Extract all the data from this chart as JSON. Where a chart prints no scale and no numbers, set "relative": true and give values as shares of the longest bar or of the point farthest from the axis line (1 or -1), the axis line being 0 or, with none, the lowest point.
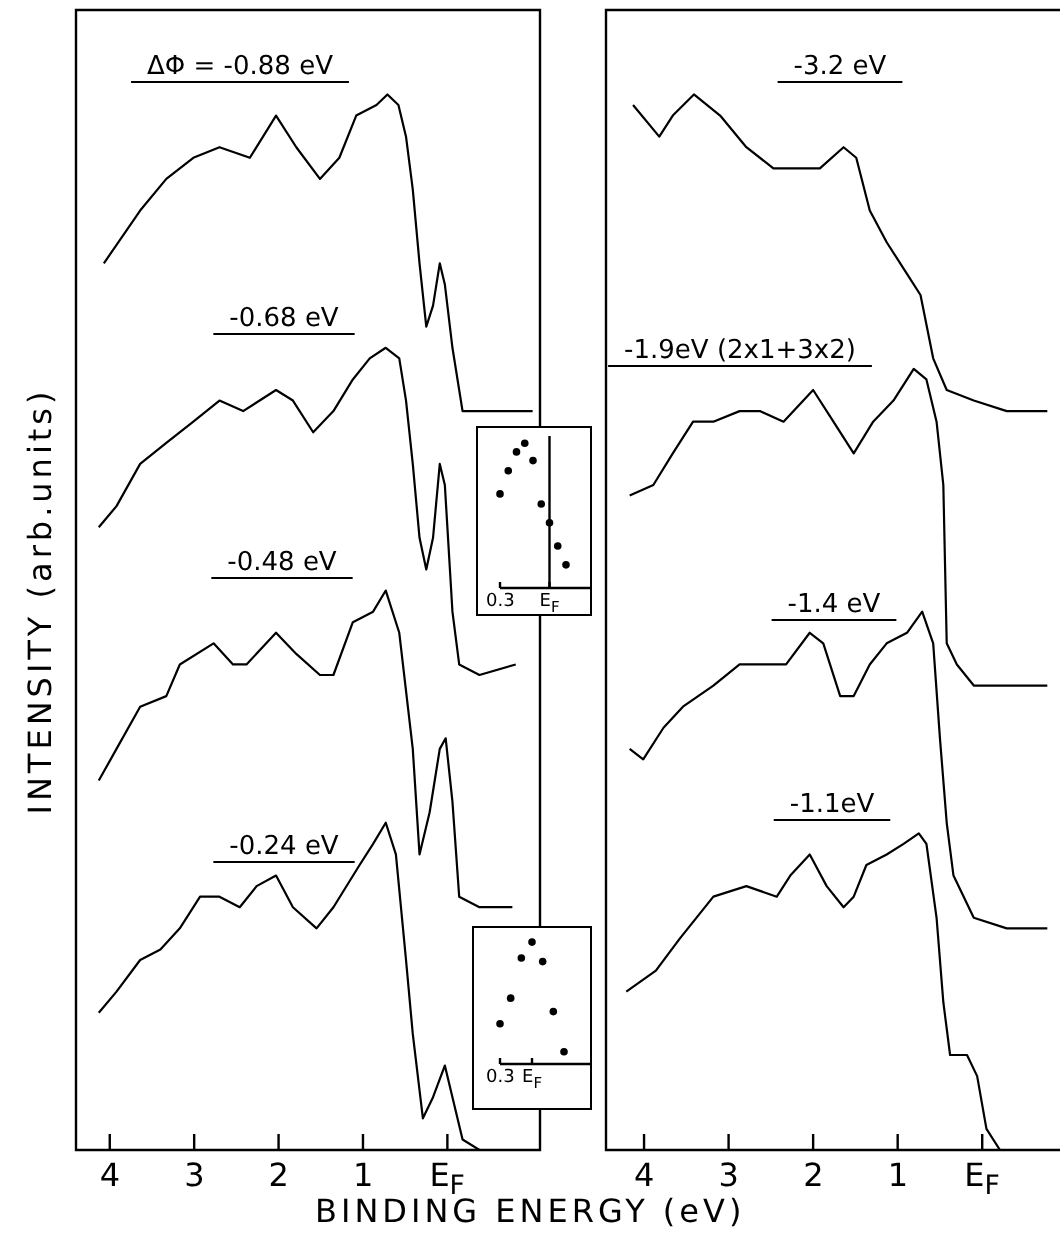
{
  "chart_data": [
    {
      "type": "line",
      "xlabel": "BINDING ENERGY (eV)",
      "ylabel": "INTENSITY (arb.units)",
      "relative": true,
      "xlim": [
        4.4,
        -1.05
      ],
      "xticks": [
        4,
        3,
        2,
        1,
        {
          "value": 0,
          "label": "E$_{F}$"
        }
      ],
      "annotations": [
        "ΔΦ = -0.88 eV",
        "-0.68 eV",
        "-0.48 eV",
        "-0.24 eV"
      ],
      "series": [
        {
          "color": "#000000",
          "x": [
            4.07,
            3.64,
            3.33,
            3.01,
            2.7,
            2.34,
            2.03,
            1.79,
            1.51,
            1.28,
            1.08,
            0.84,
            0.71,
            0.58,
            0.49,
            0.41,
            0.33,
            0.25,
            0.17,
            0.09,
            0.03,
            -0.06,
            -0.18,
            -0.38,
            -0.85,
            -1.01
          ],
          "values": [
            0.84,
            0.89,
            0.92,
            0.94,
            0.95,
            0.94,
            0.98,
            0.95,
            0.92,
            0.94,
            0.98,
            0.99,
            1.0,
            0.99,
            0.96,
            0.91,
            0.84,
            0.78,
            0.8,
            0.84,
            0.82,
            0.76,
            0.7,
            0.7,
            0.7,
            0.7
          ]
        },
        {
          "color": "#000000",
          "x": [
            4.13,
            3.92,
            3.64,
            3.33,
            3.01,
            2.7,
            2.42,
            2.03,
            1.83,
            1.59,
            1.35,
            1.12,
            0.92,
            0.73,
            0.57,
            0.49,
            0.41,
            0.33,
            0.25,
            0.17,
            0.09,
            0.03,
            -0.06,
            -0.14,
            -0.38,
            -0.81
          ],
          "values": [
            0.59,
            0.61,
            0.65,
            0.67,
            0.69,
            0.71,
            0.7,
            0.72,
            0.71,
            0.68,
            0.7,
            0.73,
            0.75,
            0.76,
            0.75,
            0.71,
            0.65,
            0.58,
            0.55,
            0.58,
            0.65,
            0.63,
            0.51,
            0.46,
            0.45,
            0.46
          ]
        },
        {
          "color": "#000000",
          "x": [
            4.13,
            3.92,
            3.64,
            3.33,
            3.17,
            2.77,
            2.54,
            2.38,
            2.03,
            1.79,
            1.51,
            1.35,
            1.12,
            0.88,
            0.73,
            0.57,
            0.41,
            0.33,
            0.21,
            0.09,
            0.02,
            -0.06,
            -0.14,
            -0.38,
            -0.77
          ],
          "values": [
            0.35,
            0.38,
            0.42,
            0.43,
            0.46,
            0.48,
            0.46,
            0.46,
            0.49,
            0.47,
            0.45,
            0.45,
            0.5,
            0.51,
            0.53,
            0.49,
            0.38,
            0.28,
            0.32,
            0.38,
            0.39,
            0.33,
            0.24,
            0.23,
            0.23
          ]
        },
        {
          "color": "#000000",
          "x": [
            4.13,
            3.92,
            3.64,
            3.4,
            3.17,
            2.93,
            2.7,
            2.46,
            2.26,
            2.03,
            1.83,
            1.55,
            1.35,
            1.04,
            0.88,
            0.73,
            0.61,
            0.49,
            0.41,
            0.29,
            0.17,
            0.03,
            -0.06,
            -0.18,
            -0.38,
            -0.77
          ],
          "values": [
            0.13,
            0.15,
            0.18,
            0.19,
            0.21,
            0.24,
            0.24,
            0.23,
            0.25,
            0.26,
            0.23,
            0.21,
            0.23,
            0.27,
            0.29,
            0.31,
            0.28,
            0.18,
            0.11,
            0.03,
            0.05,
            0.08,
            0.05,
            0.01,
            0.0,
            0.0
          ]
        }
      ]
    },
    {
      "type": "line",
      "relative": true,
      "xlim": [
        4.45,
        -0.92
      ],
      "xticks": [
        4,
        3,
        2,
        1,
        {
          "value": 0,
          "label": "E$_{F}$"
        }
      ],
      "annotations": [
        "-3.2 eV",
        "-1.9eV (2x1+3x2)",
        "-1.4 eV",
        "-1.1eV"
      ],
      "series": [
        {
          "color": "#000000",
          "x": [
            4.13,
            3.82,
            3.66,
            3.41,
            3.1,
            2.79,
            2.47,
            2.16,
            1.92,
            1.64,
            1.49,
            1.33,
            1.13,
            0.89,
            0.73,
            0.58,
            0.42,
            0.1,
            -0.29,
            -0.77
          ],
          "values": [
            0.99,
            0.96,
            0.98,
            1.0,
            0.98,
            0.95,
            0.93,
            0.93,
            0.93,
            0.95,
            0.94,
            0.89,
            0.86,
            0.83,
            0.81,
            0.75,
            0.72,
            0.71,
            0.7,
            0.7
          ]
        },
        {
          "color": "#000000",
          "x": [
            4.17,
            3.89,
            3.66,
            3.42,
            3.18,
            2.87,
            2.63,
            2.35,
            2.0,
            1.76,
            1.52,
            1.29,
            1.05,
            0.81,
            0.66,
            0.54,
            0.46,
            0.42,
            0.3,
            0.1,
            -0.29,
            -0.77
          ],
          "values": [
            0.62,
            0.63,
            0.66,
            0.69,
            0.69,
            0.7,
            0.7,
            0.69,
            0.72,
            0.69,
            0.66,
            0.69,
            0.71,
            0.74,
            0.73,
            0.69,
            0.63,
            0.48,
            0.46,
            0.44,
            0.44,
            0.44
          ]
        },
        {
          "color": "#000000",
          "x": [
            4.17,
            4.01,
            3.77,
            3.54,
            3.18,
            2.87,
            2.55,
            2.32,
            2.04,
            1.88,
            1.68,
            1.52,
            1.33,
            1.13,
            0.89,
            0.71,
            0.58,
            0.5,
            0.42,
            0.34,
            0.1,
            -0.29,
            -0.77
          ],
          "values": [
            0.38,
            0.37,
            0.4,
            0.42,
            0.44,
            0.46,
            0.46,
            0.46,
            0.49,
            0.48,
            0.43,
            0.43,
            0.46,
            0.48,
            0.49,
            0.51,
            0.48,
            0.39,
            0.31,
            0.26,
            0.22,
            0.21,
            0.21
          ]
        },
        {
          "color": "#000000",
          "x": [
            4.21,
            3.86,
            3.58,
            3.18,
            2.79,
            2.43,
            2.27,
            2.04,
            1.84,
            1.64,
            1.52,
            1.37,
            1.13,
            0.93,
            0.75,
            0.66,
            0.54,
            0.46,
            0.38,
            0.18,
            0.06,
            -0.05,
            -0.21,
            -0.69
          ],
          "values": [
            0.15,
            0.17,
            0.2,
            0.24,
            0.25,
            0.24,
            0.26,
            0.28,
            0.25,
            0.23,
            0.24,
            0.27,
            0.28,
            0.29,
            0.3,
            0.29,
            0.22,
            0.14,
            0.09,
            0.09,
            0.07,
            0.02,
            0.0,
            0.0
          ]
        }
      ]
    },
    {
      "type": "scatter",
      "relative": true,
      "marker": "circle",
      "categories": [
        "0.3",
        null,
        null,
        null,
        null,
        null,
        "E$_{F}$",
        null,
        null
      ],
      "ref_lines": [
        {
          "axis": "x",
          "value": "E$_{F}$"
        }
      ],
      "series": [
        {
          "color": "#000000",
          "values": [
            0.65,
            0.81,
            0.94,
            1.0,
            0.88,
            0.58,
            0.45,
            0.29,
            0.16
          ]
        }
      ]
    },
    {
      "type": "scatter",
      "relative": true,
      "marker": "circle",
      "categories": [
        "0.3",
        null,
        null,
        "E$_{F}$",
        null,
        null,
        null
      ],
      "series": [
        {
          "color": "#000000",
          "values": [
            0.33,
            0.54,
            0.87,
            1.0,
            0.84,
            0.43,
            0.1
          ]
        }
      ]
    }
  ]
}
